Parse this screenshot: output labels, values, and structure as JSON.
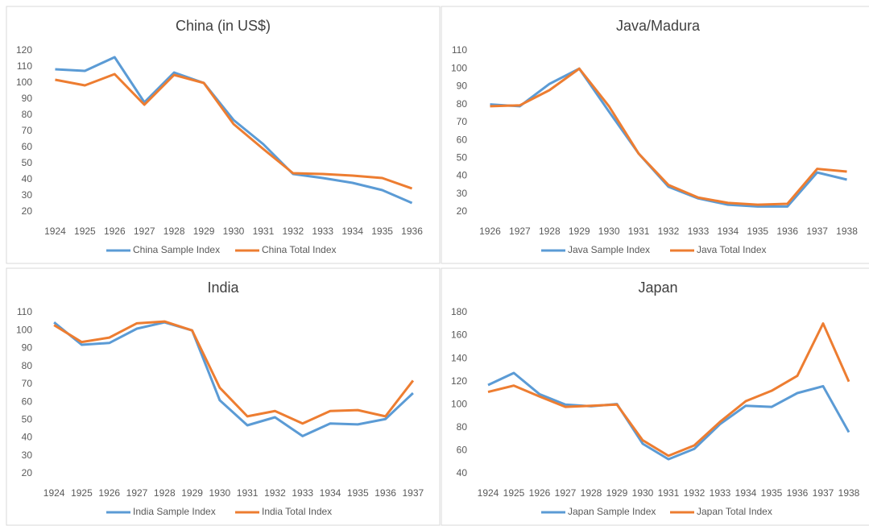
{
  "chart_data": [
    {
      "type": "line",
      "title": "China (in US$)",
      "categories": [
        1924,
        1925,
        1926,
        1927,
        1928,
        1929,
        1930,
        1931,
        1932,
        1933,
        1934,
        1935,
        1936
      ],
      "series": [
        {
          "name": "China Sample Index",
          "color": "#5b9bd5",
          "values": [
            108.5,
            107.5,
            116,
            88,
            106.5,
            100,
            77,
            62,
            43.5,
            41,
            38,
            33.5,
            25.5
          ]
        },
        {
          "name": "China Total Index",
          "color": "#ed7d31",
          "values": [
            102,
            98.5,
            105.5,
            86.5,
            105,
            100,
            74.5,
            59,
            44,
            43.5,
            42.5,
            41,
            34.5
          ]
        }
      ],
      "ylim": [
        20,
        120
      ],
      "yticks": [
        20,
        30,
        40,
        50,
        60,
        70,
        80,
        90,
        100,
        110,
        120
      ]
    },
    {
      "type": "line",
      "title": "Java/Madura",
      "categories": [
        1926,
        1927,
        1928,
        1929,
        1930,
        1931,
        1932,
        1933,
        1934,
        1935,
        1936,
        1937,
        1938
      ],
      "series": [
        {
          "name": "Java Sample Index",
          "color": "#5b9bd5",
          "values": [
            80,
            79,
            91.5,
            100,
            76,
            52.5,
            34,
            27.5,
            24,
            23,
            23,
            42,
            38
          ]
        },
        {
          "name": "Java Total Index",
          "color": "#ed7d31",
          "values": [
            79,
            79.5,
            88,
            100,
            79,
            52.5,
            35,
            28,
            25,
            24,
            24.5,
            44,
            42.5
          ]
        }
      ],
      "ylim": [
        20,
        110
      ],
      "yticks": [
        20,
        30,
        40,
        50,
        60,
        70,
        80,
        90,
        100,
        110
      ]
    },
    {
      "type": "line",
      "title": "India",
      "categories": [
        1924,
        1925,
        1926,
        1927,
        1928,
        1929,
        1930,
        1931,
        1932,
        1933,
        1934,
        1935,
        1936,
        1937
      ],
      "series": [
        {
          "name": "India Sample Index",
          "color": "#5b9bd5",
          "values": [
            104.5,
            92,
            93,
            101,
            104.5,
            100,
            61,
            47,
            51.5,
            41,
            48,
            47.5,
            50.5,
            65
          ]
        },
        {
          "name": "India Total Index",
          "color": "#ed7d31",
          "values": [
            103,
            93.5,
            96,
            104,
            105,
            100,
            68,
            52,
            55,
            48,
            55,
            55.5,
            52,
            72
          ]
        }
      ],
      "ylim": [
        20,
        110
      ],
      "yticks": [
        20,
        30,
        40,
        50,
        60,
        70,
        80,
        90,
        100,
        110
      ]
    },
    {
      "type": "line",
      "title": "Japan",
      "categories": [
        1924,
        1925,
        1926,
        1927,
        1928,
        1929,
        1930,
        1931,
        1932,
        1933,
        1934,
        1935,
        1936,
        1937,
        1938
      ],
      "series": [
        {
          "name": "Japan Sample Index",
          "color": "#5b9bd5",
          "values": [
            117,
            127.5,
            109,
            100,
            98.5,
            100.5,
            66,
            52.5,
            61.5,
            83,
            99,
            98,
            110,
            116,
            76
          ]
        },
        {
          "name": "Japan Total Index",
          "color": "#ed7d31",
          "values": [
            111,
            116.5,
            107,
            98,
            99,
            100,
            69,
            55.5,
            64.5,
            85,
            103,
            112,
            125,
            170.5,
            120
          ]
        }
      ],
      "ylim": [
        40,
        180
      ],
      "yticks": [
        40,
        60,
        80,
        100,
        120,
        140,
        160,
        180
      ]
    }
  ]
}
